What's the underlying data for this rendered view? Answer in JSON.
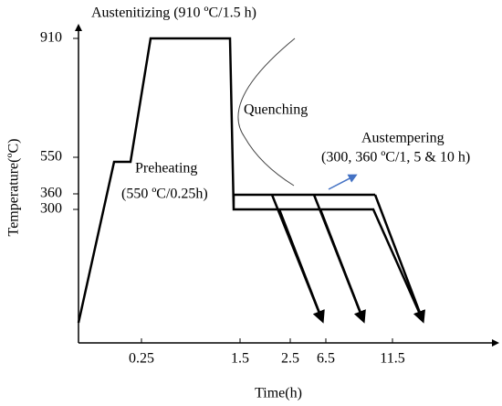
{
  "header": {
    "title": "Austenitizing (910 ºC/1.5 h)"
  },
  "axes": {
    "y_label": "Temperature(ºC)",
    "x_label": "Time(h)",
    "y_ticks": [
      "910",
      "550",
      "360",
      "300"
    ],
    "x_ticks": [
      "0.25",
      "1.5",
      "2.5",
      "6.5",
      "11.5"
    ]
  },
  "annotations": {
    "preheating": "Preheating",
    "preheating_detail": "(550 ºC/0.25h)",
    "quenching": "Quenching",
    "austempering": "Austempering",
    "austempering_detail": "(300, 360 ºC/1, 5 & 10 h)"
  }
}
